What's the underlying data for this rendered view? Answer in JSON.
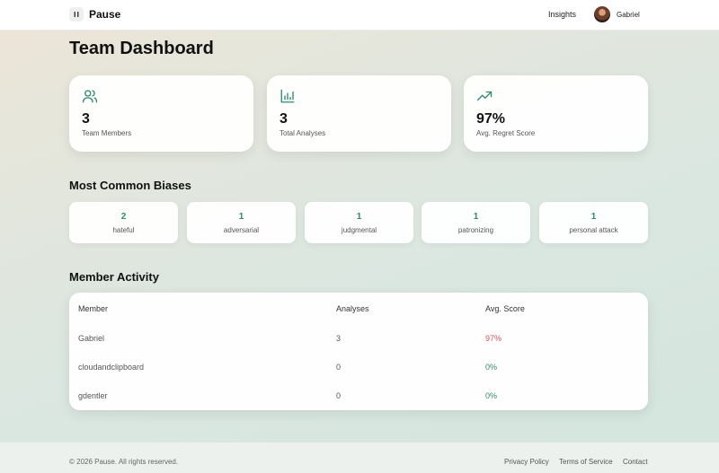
{
  "header": {
    "brand": "Pause",
    "nav_insights": "Insights",
    "user_name": "Gabriel"
  },
  "page_title": "Team Dashboard",
  "stats": [
    {
      "icon": "users-icon",
      "value": "3",
      "label": "Team Members"
    },
    {
      "icon": "bar-chart-icon",
      "value": "3",
      "label": "Total Analyses"
    },
    {
      "icon": "trending-up-icon",
      "value": "97%",
      "label": "Avg. Regret Score"
    }
  ],
  "biases_title": "Most Common Biases",
  "biases": [
    {
      "count": "2",
      "name": "hateful"
    },
    {
      "count": "1",
      "name": "adversarial"
    },
    {
      "count": "1",
      "name": "judgmental"
    },
    {
      "count": "1",
      "name": "patronizing"
    },
    {
      "count": "1",
      "name": "personal attack"
    }
  ],
  "activity_title": "Member Activity",
  "table": {
    "headers": [
      "Member",
      "Analyses",
      "Avg. Score"
    ],
    "rows": [
      {
        "member": "Gabriel",
        "analyses": "3",
        "score": "97%"
      },
      {
        "member": "cloudandclipboard",
        "analyses": "0",
        "score": "0%"
      },
      {
        "member": "gdentler",
        "analyses": "0",
        "score": "0%"
      }
    ]
  },
  "footer": {
    "copyright": "© 2026 Pause. All rights reserved.",
    "links": [
      "Privacy Policy",
      "Terms of Service",
      "Contact"
    ]
  },
  "colors": {
    "accent": "#2e8a72",
    "score_high": "#d0555f"
  }
}
